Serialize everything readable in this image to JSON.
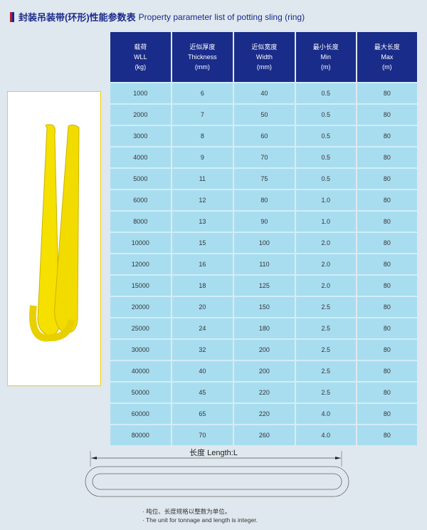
{
  "title": {
    "zh": "封装吊装带(环形)性能参数表",
    "en": "Property parameter list of potting sling (ring)"
  },
  "table": {
    "headers": [
      {
        "zh": "载荷",
        "en": "WLL",
        "unit": "(kg)"
      },
      {
        "zh": "近似厚度",
        "en": "Thickness",
        "unit": "(mm)"
      },
      {
        "zh": "近似宽度",
        "en": "Width",
        "unit": "(mm)"
      },
      {
        "zh": "最小长度",
        "en": "Min",
        "unit": "(m)"
      },
      {
        "zh": "最大长度",
        "en": "Max",
        "unit": "(m)"
      }
    ],
    "rows": [
      [
        "1000",
        "6",
        "40",
        "0.5",
        "80"
      ],
      [
        "2000",
        "7",
        "50",
        "0.5",
        "80"
      ],
      [
        "3000",
        "8",
        "60",
        "0.5",
        "80"
      ],
      [
        "4000",
        "9",
        "70",
        "0.5",
        "80"
      ],
      [
        "5000",
        "11",
        "75",
        "0.5",
        "80"
      ],
      [
        "6000",
        "12",
        "80",
        "1.0",
        "80"
      ],
      [
        "8000",
        "13",
        "90",
        "1.0",
        "80"
      ],
      [
        "10000",
        "15",
        "100",
        "2.0",
        "80"
      ],
      [
        "12000",
        "16",
        "110",
        "2.0",
        "80"
      ],
      [
        "15000",
        "18",
        "125",
        "2.0",
        "80"
      ],
      [
        "20000",
        "20",
        "150",
        "2.5",
        "80"
      ],
      [
        "25000",
        "24",
        "180",
        "2.5",
        "80"
      ],
      [
        "30000",
        "32",
        "200",
        "2.5",
        "80"
      ],
      [
        "40000",
        "40",
        "200",
        "2.5",
        "80"
      ],
      [
        "50000",
        "45",
        "220",
        "2.5",
        "80"
      ],
      [
        "60000",
        "65",
        "220",
        "4.0",
        "80"
      ],
      [
        "80000",
        "70",
        "260",
        "4.0",
        "80"
      ]
    ]
  },
  "diagram": {
    "length_label": "长度   Length:L"
  },
  "notes": [
    "· 吨位、长度规格以整数为单位。",
    "· The unit for tonnage and length is integer."
  ],
  "colors": {
    "header": "#1a2c8a",
    "cell": "#a8ddf0",
    "sling": "#f5e000"
  }
}
